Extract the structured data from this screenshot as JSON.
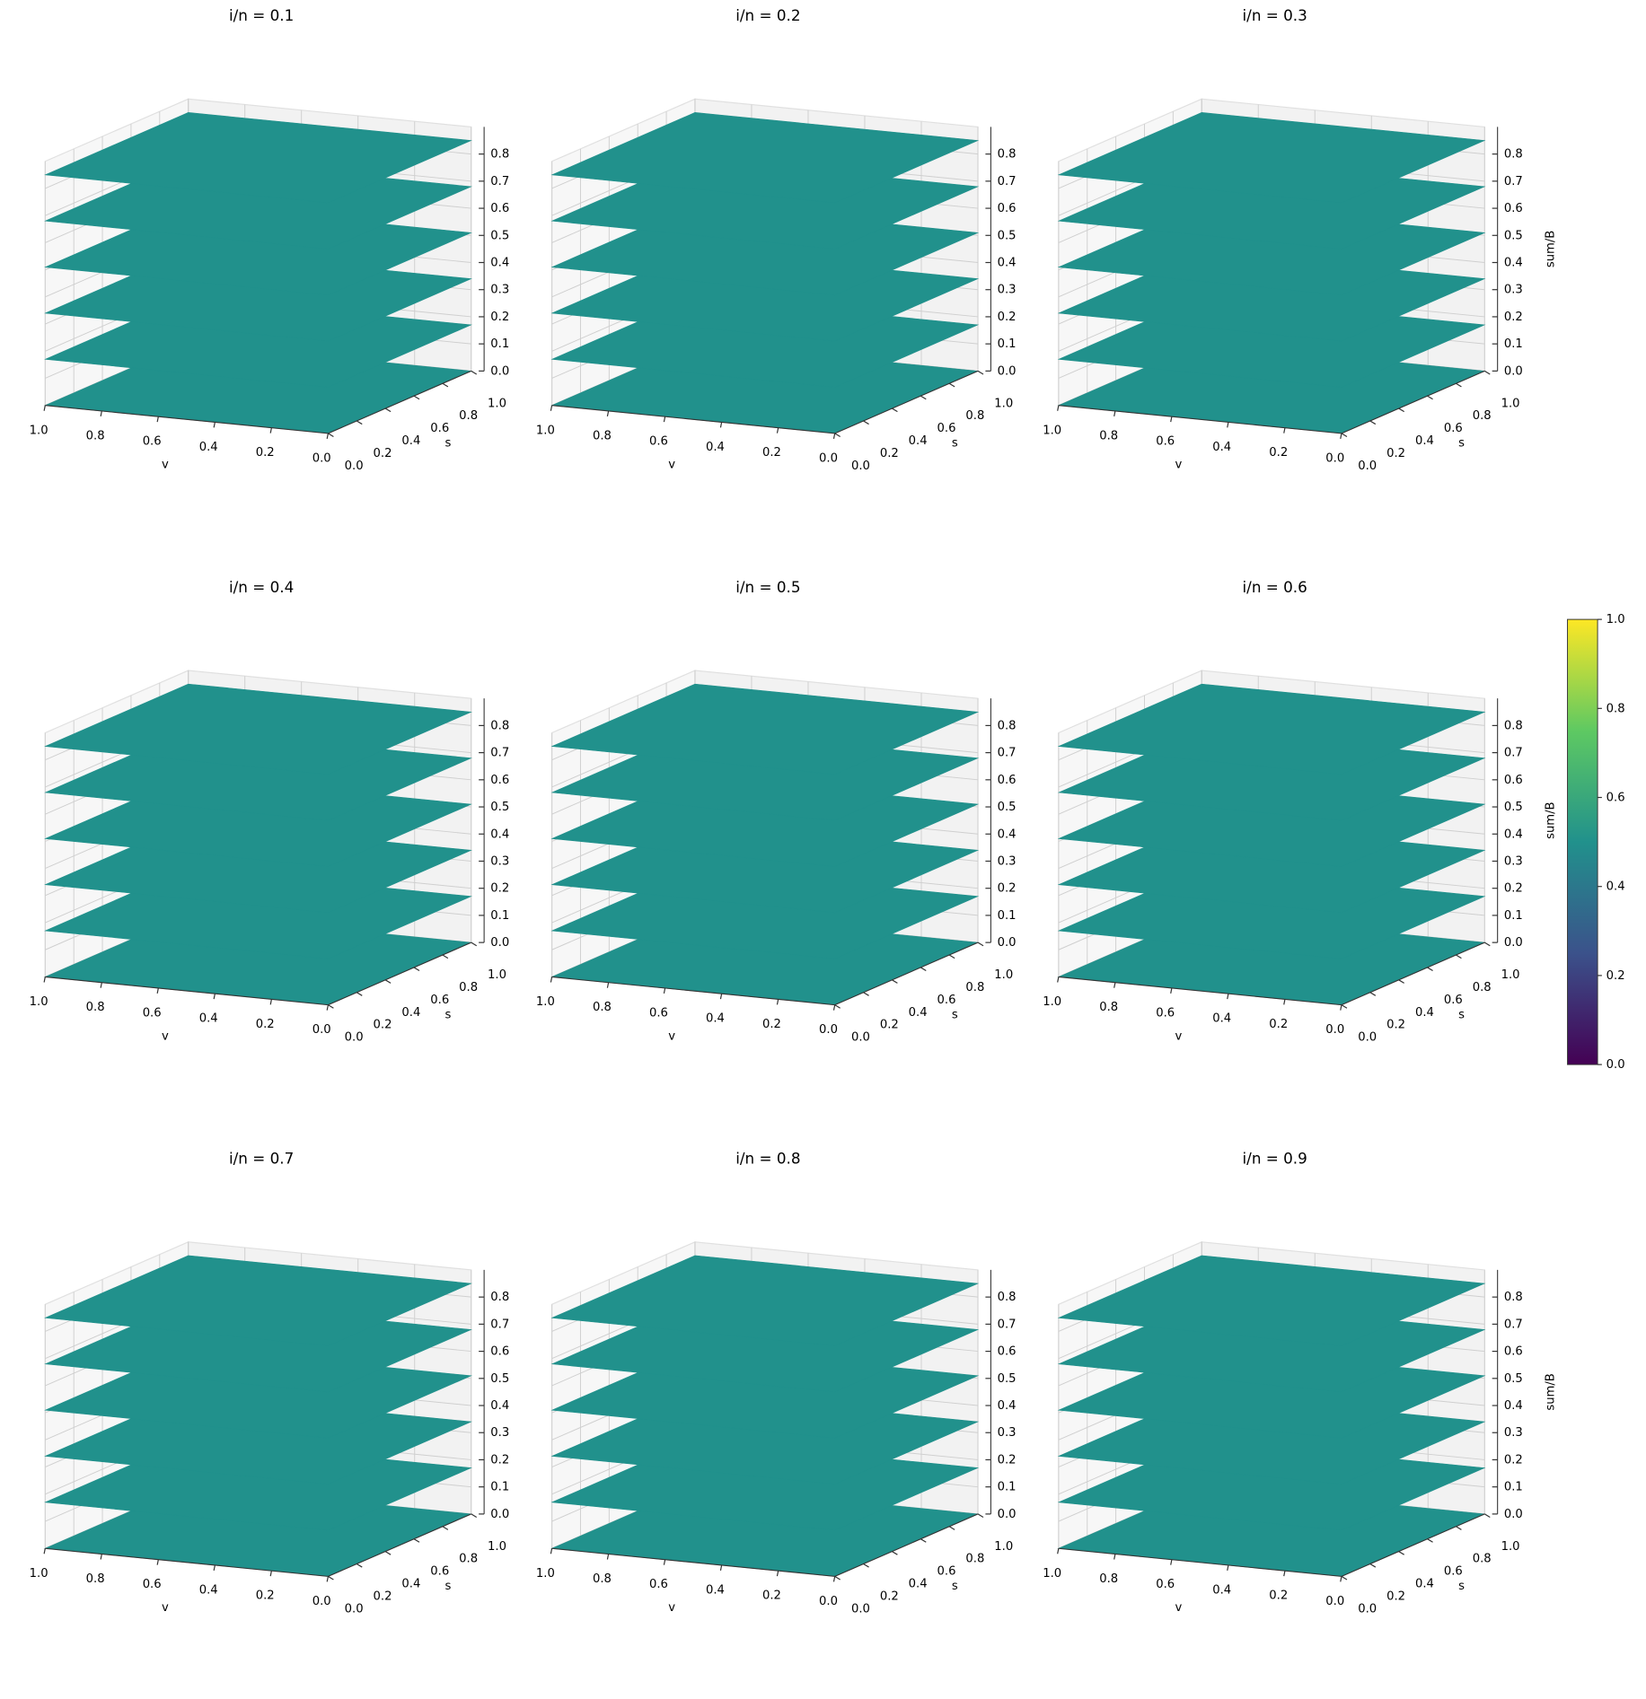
{
  "chart_data": [
    {
      "type": "surface3d",
      "title": "i/n = 0.1",
      "x_label": "v",
      "y_label": "s",
      "color": "#21918c",
      "xlim": [
        1,
        0
      ],
      "xticks": [
        {
          "value": 1,
          "label": "1.0"
        },
        0.8,
        0.6,
        0.4,
        0.2,
        {
          "value": 0,
          "label": "0.0"
        }
      ],
      "ylim": [
        0,
        1
      ],
      "yticks": [
        {
          "value": 0,
          "label": "0.0"
        },
        0.2,
        0.4,
        0.6,
        0.8,
        {
          "value": 1,
          "label": "1.0"
        }
      ],
      "zlim": [
        0,
        0.9
      ],
      "zticks": [
        {
          "value": 0,
          "label": "0.0"
        },
        0.1,
        0.2,
        0.3,
        0.4,
        0.5,
        0.6,
        0.7,
        0.8
      ],
      "levels": [
        0,
        0.17,
        0.34,
        0.51,
        0.68,
        0.85
      ]
    },
    {
      "type": "surface3d",
      "title": "i/n = 0.2",
      "x_label": "v",
      "y_label": "s",
      "color": "#21918c",
      "xlim": [
        1,
        0
      ],
      "xticks": [
        {
          "value": 1,
          "label": "1.0"
        },
        0.8,
        0.6,
        0.4,
        0.2,
        {
          "value": 0,
          "label": "0.0"
        }
      ],
      "ylim": [
        0,
        1
      ],
      "yticks": [
        {
          "value": 0,
          "label": "0.0"
        },
        0.2,
        0.4,
        0.6,
        0.8,
        {
          "value": 1,
          "label": "1.0"
        }
      ],
      "zlim": [
        0,
        0.9
      ],
      "zticks": [
        {
          "value": 0,
          "label": "0.0"
        },
        0.1,
        0.2,
        0.3,
        0.4,
        0.5,
        0.6,
        0.7,
        0.8
      ],
      "levels": [
        0,
        0.17,
        0.34,
        0.51,
        0.68,
        0.85
      ]
    },
    {
      "type": "surface3d",
      "title": "i/n = 0.3",
      "x_label": "v",
      "y_label": "s",
      "z_label": "sum/B",
      "color": "#21918c",
      "xlim": [
        1,
        0
      ],
      "xticks": [
        {
          "value": 1,
          "label": "1.0"
        },
        0.8,
        0.6,
        0.4,
        0.2,
        {
          "value": 0,
          "label": "0.0"
        }
      ],
      "ylim": [
        0,
        1
      ],
      "yticks": [
        {
          "value": 0,
          "label": "0.0"
        },
        0.2,
        0.4,
        0.6,
        0.8,
        {
          "value": 1,
          "label": "1.0"
        }
      ],
      "zlim": [
        0,
        0.9
      ],
      "zticks": [
        {
          "value": 0,
          "label": "0.0"
        },
        0.1,
        0.2,
        0.3,
        0.4,
        0.5,
        0.6,
        0.7,
        0.8
      ],
      "levels": [
        0,
        0.17,
        0.34,
        0.51,
        0.68,
        0.85
      ]
    },
    {
      "type": "surface3d",
      "title": "i/n = 0.4",
      "x_label": "v",
      "y_label": "s",
      "color": "#21918c",
      "xlim": [
        1,
        0
      ],
      "xticks": [
        {
          "value": 1,
          "label": "1.0"
        },
        0.8,
        0.6,
        0.4,
        0.2,
        {
          "value": 0,
          "label": "0.0"
        }
      ],
      "ylim": [
        0,
        1
      ],
      "yticks": [
        {
          "value": 0,
          "label": "0.0"
        },
        0.2,
        0.4,
        0.6,
        0.8,
        {
          "value": 1,
          "label": "1.0"
        }
      ],
      "zlim": [
        0,
        0.9
      ],
      "zticks": [
        {
          "value": 0,
          "label": "0.0"
        },
        0.1,
        0.2,
        0.3,
        0.4,
        0.5,
        0.6,
        0.7,
        0.8
      ],
      "levels": [
        0,
        0.17,
        0.34,
        0.51,
        0.68,
        0.85
      ]
    },
    {
      "type": "surface3d",
      "title": "i/n = 0.5",
      "x_label": "v",
      "y_label": "s",
      "color": "#21918c",
      "xlim": [
        1,
        0
      ],
      "xticks": [
        {
          "value": 1,
          "label": "1.0"
        },
        0.8,
        0.6,
        0.4,
        0.2,
        {
          "value": 0,
          "label": "0.0"
        }
      ],
      "ylim": [
        0,
        1
      ],
      "yticks": [
        {
          "value": 0,
          "label": "0.0"
        },
        0.2,
        0.4,
        0.6,
        0.8,
        {
          "value": 1,
          "label": "1.0"
        }
      ],
      "zlim": [
        0,
        0.9
      ],
      "zticks": [
        {
          "value": 0,
          "label": "0.0"
        },
        0.1,
        0.2,
        0.3,
        0.4,
        0.5,
        0.6,
        0.7,
        0.8
      ],
      "levels": [
        0,
        0.17,
        0.34,
        0.51,
        0.68,
        0.85
      ]
    },
    {
      "type": "surface3d",
      "title": "i/n = 0.6",
      "x_label": "v",
      "y_label": "s",
      "z_label": "sum/B",
      "color": "#21918c",
      "xlim": [
        1,
        0
      ],
      "xticks": [
        {
          "value": 1,
          "label": "1.0"
        },
        0.8,
        0.6,
        0.4,
        0.2,
        {
          "value": 0,
          "label": "0.0"
        }
      ],
      "ylim": [
        0,
        1
      ],
      "yticks": [
        {
          "value": 0,
          "label": "0.0"
        },
        0.2,
        0.4,
        0.6,
        0.8,
        {
          "value": 1,
          "label": "1.0"
        }
      ],
      "zlim": [
        0,
        0.9
      ],
      "zticks": [
        {
          "value": 0,
          "label": "0.0"
        },
        0.1,
        0.2,
        0.3,
        0.4,
        0.5,
        0.6,
        0.7,
        0.8
      ],
      "levels": [
        0,
        0.17,
        0.34,
        0.51,
        0.68,
        0.85
      ]
    },
    {
      "type": "surface3d",
      "title": "i/n = 0.7",
      "x_label": "v",
      "y_label": "s",
      "color": "#21918c",
      "xlim": [
        1,
        0
      ],
      "xticks": [
        {
          "value": 1,
          "label": "1.0"
        },
        0.8,
        0.6,
        0.4,
        0.2,
        {
          "value": 0,
          "label": "0.0"
        }
      ],
      "ylim": [
        0,
        1
      ],
      "yticks": [
        {
          "value": 0,
          "label": "0.0"
        },
        0.2,
        0.4,
        0.6,
        0.8,
        {
          "value": 1,
          "label": "1.0"
        }
      ],
      "zlim": [
        0,
        0.9
      ],
      "zticks": [
        {
          "value": 0,
          "label": "0.0"
        },
        0.1,
        0.2,
        0.3,
        0.4,
        0.5,
        0.6,
        0.7,
        0.8
      ],
      "levels": [
        0,
        0.17,
        0.34,
        0.51,
        0.68,
        0.85
      ]
    },
    {
      "type": "surface3d",
      "title": "i/n = 0.8",
      "x_label": "v",
      "y_label": "s",
      "color": "#21918c",
      "xlim": [
        1,
        0
      ],
      "xticks": [
        {
          "value": 1,
          "label": "1.0"
        },
        0.8,
        0.6,
        0.4,
        0.2,
        {
          "value": 0,
          "label": "0.0"
        }
      ],
      "ylim": [
        0,
        1
      ],
      "yticks": [
        {
          "value": 0,
          "label": "0.0"
        },
        0.2,
        0.4,
        0.6,
        0.8,
        {
          "value": 1,
          "label": "1.0"
        }
      ],
      "zlim": [
        0,
        0.9
      ],
      "zticks": [
        {
          "value": 0,
          "label": "0.0"
        },
        0.1,
        0.2,
        0.3,
        0.4,
        0.5,
        0.6,
        0.7,
        0.8
      ],
      "levels": [
        0,
        0.17,
        0.34,
        0.51,
        0.68,
        0.85
      ]
    },
    {
      "type": "surface3d",
      "title": "i/n = 0.9",
      "x_label": "v",
      "y_label": "s",
      "z_label": "sum/B",
      "color": "#21918c",
      "xlim": [
        1,
        0
      ],
      "xticks": [
        {
          "value": 1,
          "label": "1.0"
        },
        0.8,
        0.6,
        0.4,
        0.2,
        {
          "value": 0,
          "label": "0.0"
        }
      ],
      "ylim": [
        0,
        1
      ],
      "yticks": [
        {
          "value": 0,
          "label": "0.0"
        },
        0.2,
        0.4,
        0.6,
        0.8,
        {
          "value": 1,
          "label": "1.0"
        }
      ],
      "zlim": [
        0,
        0.9
      ],
      "zticks": [
        {
          "value": 0,
          "label": "0.0"
        },
        0.1,
        0.2,
        0.3,
        0.4,
        0.5,
        0.6,
        0.7,
        0.8
      ],
      "levels": [
        0,
        0.17,
        0.34,
        0.51,
        0.68,
        0.85
      ]
    },
    {
      "type": "colorbar",
      "colormap": [
        "#440154",
        "#3b528b",
        "#21918c",
        "#5ec962",
        "#fde725"
      ],
      "clim": [
        0,
        1
      ],
      "ticks": [
        {
          "value": 0,
          "label": "0.0"
        },
        0.2,
        0.4,
        0.6,
        0.8,
        {
          "value": 1,
          "label": "1.0"
        }
      ]
    }
  ]
}
